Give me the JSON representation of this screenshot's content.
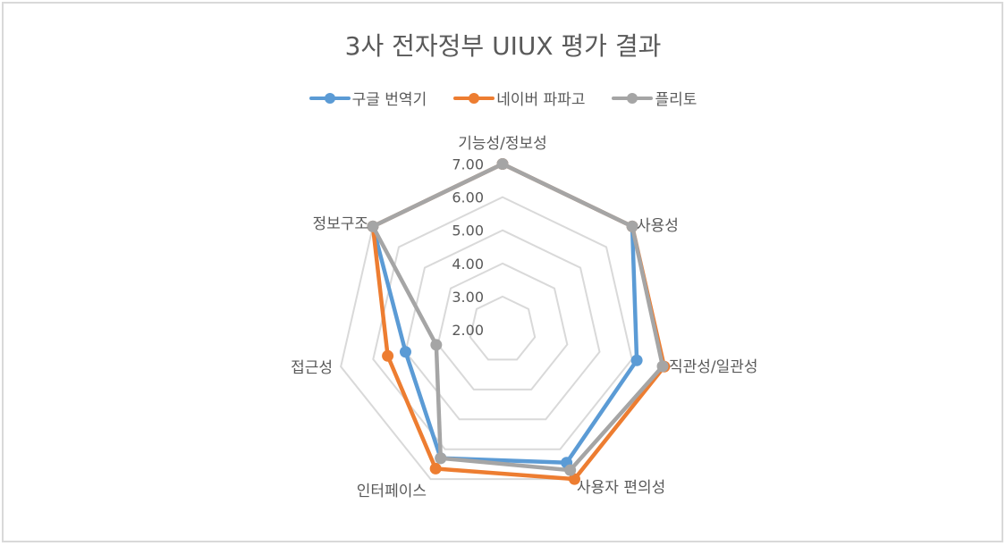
{
  "chart_data": {
    "type": "radar",
    "title": "3사 전자정부 UIUX 평가 결과",
    "categories": [
      "기능성/정보성",
      "사용성",
      "직관성/일관성",
      "사용자 편의성",
      "인터페이스",
      "접근성",
      "정보구조"
    ],
    "series": [
      {
        "name": "구글 번역기",
        "color": "#5b9bd5",
        "values": [
          7.0,
          7.0,
          6.15,
          6.45,
          6.3,
          5.0,
          7.0
        ]
      },
      {
        "name": "네이버 파파고",
        "color": "#ed7d31",
        "values": [
          7.0,
          7.0,
          7.0,
          7.0,
          6.65,
          5.55,
          7.0
        ]
      },
      {
        "name": "플리토",
        "color": "#a5a5a5",
        "values": [
          7.0,
          7.0,
          6.95,
          6.7,
          6.3,
          4.05,
          7.0
        ]
      }
    ],
    "rlim": [
      2.0,
      7.0
    ],
    "ticks": [
      "2.00",
      "3.00",
      "4.00",
      "5.00",
      "6.00",
      "7.00"
    ],
    "legend_position": "top",
    "grid": true
  },
  "legend": [
    {
      "label": "구글 번역기",
      "color": "#5b9bd5"
    },
    {
      "label": "네이버 파파고",
      "color": "#ed7d31"
    },
    {
      "label": "플리토",
      "color": "#a5a5a5"
    }
  ]
}
